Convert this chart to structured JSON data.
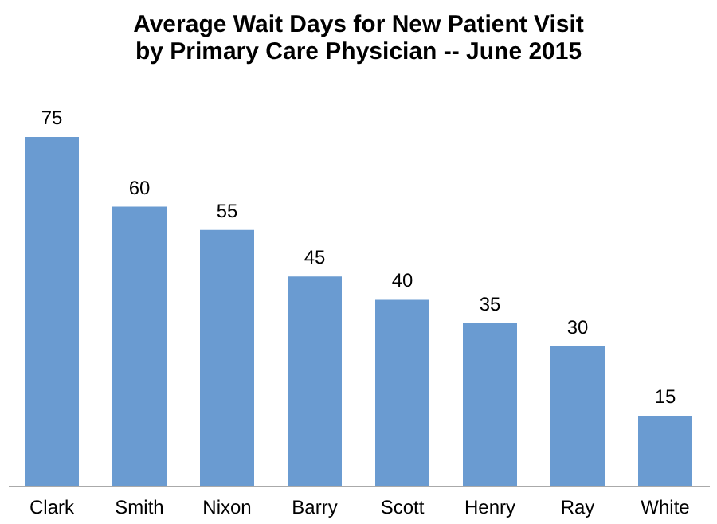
{
  "chart_data": {
    "type": "bar",
    "title": [
      "Average Wait Days for New Patient Visit",
      "by Primary Care Physician -- June 2015"
    ],
    "categories": [
      "Clark",
      "Smith",
      "Nixon",
      "Barry",
      "Scott",
      "Henry",
      "Ray",
      "White"
    ],
    "values": [
      75,
      60,
      55,
      45,
      40,
      35,
      30,
      15
    ],
    "color": "#6a9bd1",
    "data_labels": true,
    "grid": false
  }
}
